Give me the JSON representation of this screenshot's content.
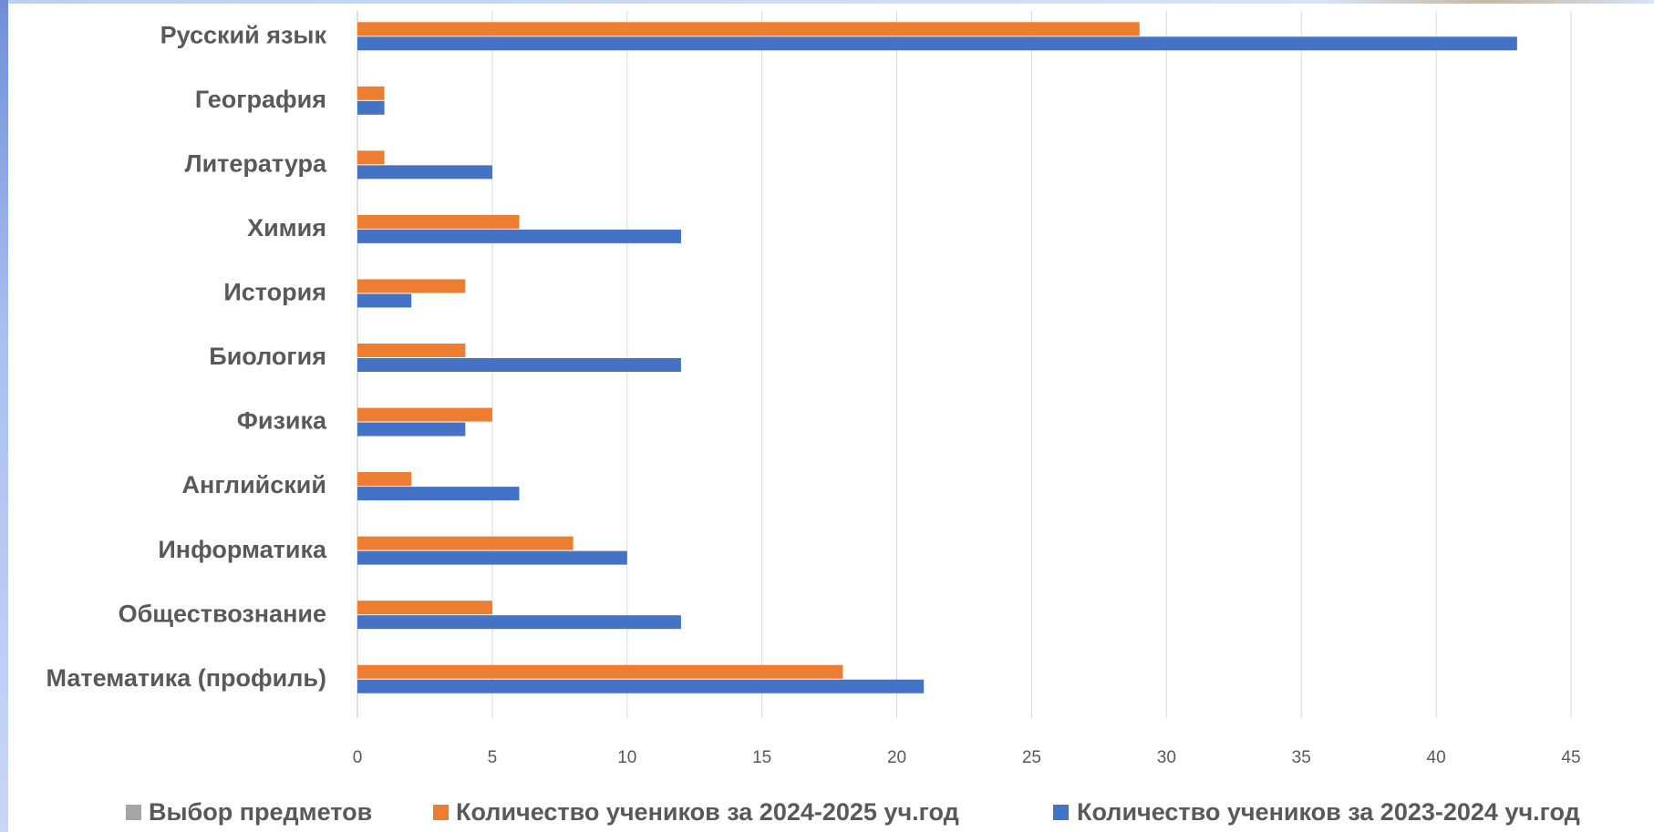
{
  "chart_data": {
    "type": "bar",
    "orientation": "horizontal",
    "categories": [
      "Математика (профиль)",
      "Обществознание",
      "Информатика",
      "Английский",
      "Физика",
      "Биология",
      "История",
      "Химия",
      "Литература",
      "География ",
      "Русский язык"
    ],
    "series": [
      {
        "name": "Выбор предметов",
        "color": "#a5a5a5",
        "values": [
          0,
          0,
          0,
          0,
          0,
          0,
          0,
          0,
          0,
          0,
          0
        ]
      },
      {
        "name": "Количество учеников за 2024-2025 уч.год",
        "color": "#ed7d31",
        "values": [
          18,
          5,
          8,
          2,
          5,
          4,
          4,
          6,
          1,
          1,
          29
        ]
      },
      {
        "name": "Количество учеников за 2023-2024 уч.год",
        "color": "#4472c4",
        "values": [
          21,
          12,
          10,
          6,
          4,
          12,
          2,
          12,
          5,
          1,
          43
        ]
      }
    ],
    "xlim": [
      0,
      45
    ],
    "xticks": [
      "0",
      "5",
      "10",
      "15",
      "20",
      "25",
      "30",
      "35",
      "40",
      "45"
    ],
    "grid": true,
    "legend_position": "bottom",
    "title": "",
    "xlabel": "",
    "ylabel": ""
  }
}
